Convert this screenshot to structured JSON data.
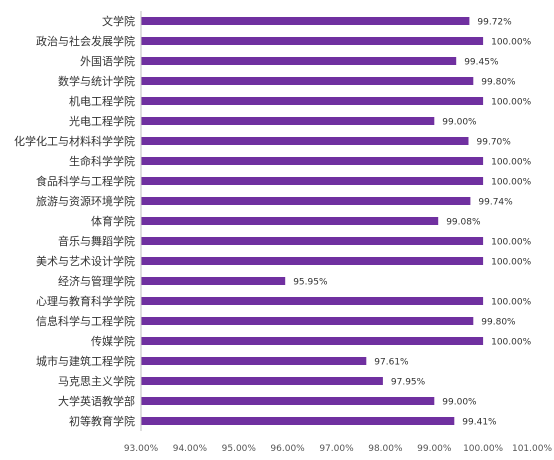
{
  "chart_data": {
    "type": "bar",
    "orientation": "horizontal",
    "categories": [
      "文学院",
      "政治与社会发展学院",
      "外国语学院",
      "数学与统计学院",
      "机电工程学院",
      "光电工程学院",
      "化学化工与材料科学学院",
      "生命科学学院",
      "食品科学与工程学院",
      "旅游与资源环境学院",
      "体育学院",
      "音乐与舞蹈学院",
      "美术与艺术设计学院",
      "经济与管理学院",
      "心理与教育科学学院",
      "信息科学与工程学院",
      "传媒学院",
      "城市与建筑工程学院",
      "马克思主义学院",
      "大学英语教学部",
      "初等教育学院"
    ],
    "values": [
      99.72,
      100.0,
      99.45,
      99.8,
      100.0,
      99.0,
      99.7,
      100.0,
      100.0,
      99.74,
      99.08,
      100.0,
      100.0,
      95.95,
      100.0,
      99.8,
      100.0,
      97.61,
      97.95,
      99.0,
      99.41
    ],
    "value_labels": [
      "99.72%",
      "100.00%",
      "99.45%",
      "99.80%",
      "100.00%",
      "99.00%",
      "99.70%",
      "100.00%",
      "100.00%",
      "99.74%",
      "99.08%",
      "100.00%",
      "100.00%",
      "95.95%",
      "100.00%",
      "99.80%",
      "100.00%",
      "97.61%",
      "97.95%",
      "99.00%",
      "99.41%"
    ],
    "xlim": [
      93,
      101
    ],
    "x_ticks": [
      93,
      94,
      95,
      96,
      97,
      98,
      99,
      100,
      101
    ],
    "x_tick_labels": [
      "93.00%",
      "94.00%",
      "95.00%",
      "96.00%",
      "97.00%",
      "98.00%",
      "99.00%",
      "100.00%",
      "101.00%"
    ],
    "bar_color": "#7030a0",
    "title": "",
    "xlabel": "",
    "ylabel": "",
    "grid": false,
    "legend": "none"
  }
}
